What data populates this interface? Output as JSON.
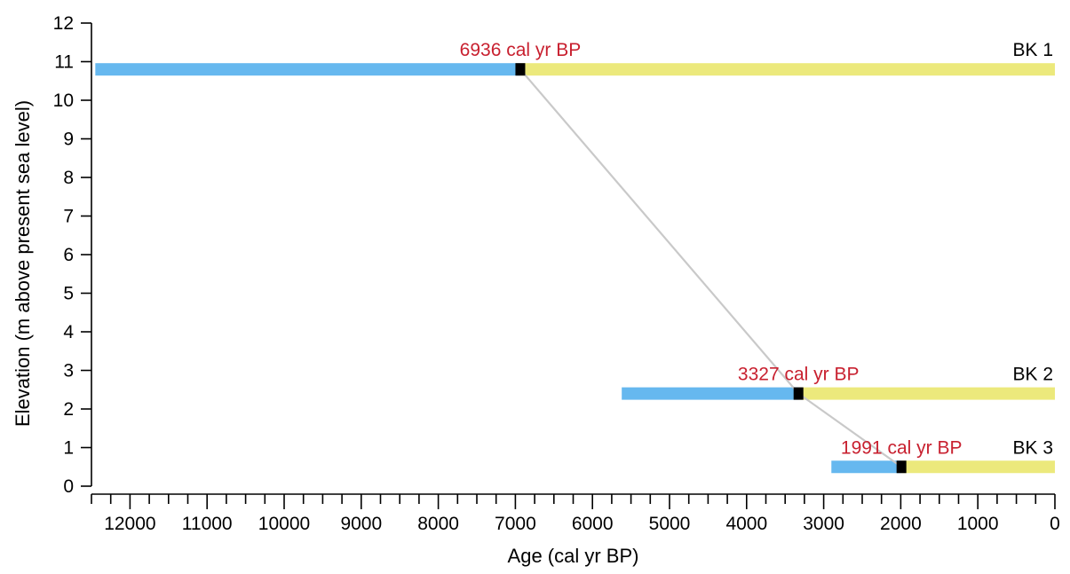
{
  "colors": {
    "pre_transgression": "#66b8ef",
    "post_transgression": "#ece97c",
    "dated_sample": "#000000",
    "date_label": "#c8202f",
    "connector": "#c9c9c9",
    "axis": "#000000"
  },
  "chart_data": {
    "type": "range-bar",
    "title": "",
    "xlabel": "Age (cal yr BP)",
    "ylabel": "Elevation (m above present sea level)",
    "xlim": [
      12500,
      0
    ],
    "x_reversed": true,
    "ylim": [
      0,
      12
    ],
    "x_ticks_major": [
      12000,
      11000,
      10000,
      9000,
      8000,
      7000,
      6000,
      5000,
      4000,
      3000,
      2000,
      1000,
      0
    ],
    "x_ticks_minor_step": 250,
    "y_ticks": [
      0,
      1,
      2,
      3,
      4,
      5,
      6,
      7,
      8,
      9,
      10,
      11,
      12
    ],
    "grid": false,
    "series": [
      {
        "name": "BK 1",
        "elevation": 10.8,
        "start_age": 12450,
        "end_age": 0,
        "date": 6936,
        "date_label": "6936 cal yr BP"
      },
      {
        "name": "BK 2",
        "elevation": 2.4,
        "start_age": 5620,
        "end_age": 0,
        "date": 3327,
        "date_label": "3327 cal yr BP"
      },
      {
        "name": "BK 3",
        "elevation": 0.5,
        "start_age": 2900,
        "end_age": 0,
        "date": 1991,
        "date_label": "1991 cal yr BP"
      }
    ],
    "connector_through_dates": true
  }
}
